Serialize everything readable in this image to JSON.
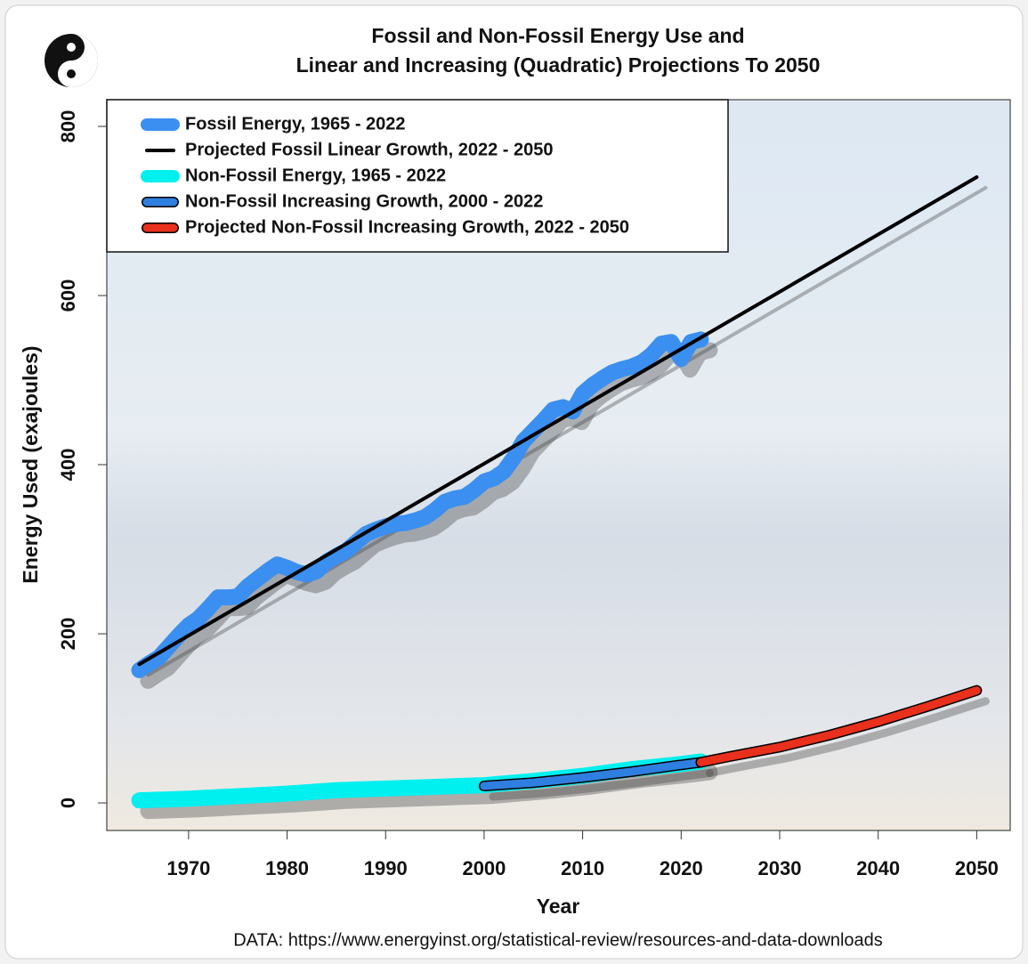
{
  "chart_data": {
    "type": "line",
    "title": "Fossil and Non-Fossil Energy Use and",
    "subtitle": "Linear and Increasing (Quadratic) Projections To 2050",
    "x_label": "Year",
    "y_label": "Energy Used (exajoules)",
    "source": "DATA: https://www.energyinst.org/statistical-review/resources-and-data-downloads",
    "xlim": [
      1961.7,
      2053.4
    ],
    "ylim": [
      -32.6,
      831.6
    ],
    "xticks": [
      1970,
      1980,
      1990,
      2000,
      2010,
      2020,
      2030,
      2040,
      2050
    ],
    "yticks": [
      0,
      200,
      400,
      600,
      800
    ],
    "legend": "top-left",
    "series": [
      {
        "name": "Fossil Energy, 1965 - 2022",
        "color": "#3b8ff0",
        "x": [
          1965,
          1966,
          1967,
          1968,
          1969,
          1970,
          1971,
          1972,
          1973,
          1974,
          1975,
          1976,
          1977,
          1978,
          1979,
          1980,
          1981,
          1982,
          1983,
          1984,
          1985,
          1986,
          1987,
          1988,
          1989,
          1990,
          1991,
          1992,
          1993,
          1994,
          1995,
          1996,
          1997,
          1998,
          1999,
          2000,
          2001,
          2002,
          2003,
          2004,
          2005,
          2006,
          2007,
          2008,
          2009,
          2010,
          2011,
          2012,
          2013,
          2014,
          2015,
          2016,
          2017,
          2018,
          2019,
          2020,
          2021,
          2022
        ],
        "values": [
          157,
          165,
          172,
          185,
          198,
          210,
          218,
          230,
          243,
          243,
          244,
          256,
          265,
          274,
          282,
          278,
          273,
          270,
          274,
          285,
          292,
          298,
          308,
          318,
          323,
          327,
          330,
          331,
          334,
          338,
          346,
          356,
          360,
          362,
          370,
          380,
          384,
          392,
          408,
          428,
          440,
          452,
          465,
          468,
          463,
          484,
          494,
          502,
          509,
          513,
          516,
          521,
          530,
          543,
          545,
          525,
          545,
          548
        ]
      },
      {
        "name": "Projected Fossil Linear Growth, 2022 - 2050",
        "color": "#000000",
        "x": [
          1965,
          2050
        ],
        "values": [
          164,
          740
        ]
      },
      {
        "name": "Non-Fossil Energy, 1965 - 2022",
        "color": "#00f0f0",
        "x": [
          1965,
          1970,
          1975,
          1980,
          1985,
          1990,
          1995,
          2000,
          2005,
          2010,
          2015,
          2020,
          2022
        ],
        "values": [
          3,
          5,
          8,
          11,
          15,
          17,
          19,
          21,
          26,
          32,
          40,
          46,
          49
        ]
      },
      {
        "name": "Non-Fossil Increasing Growth, 2000 - 2022",
        "color": "#2f7fe0",
        "outline": "#000000",
        "x": [
          2000,
          2005,
          2010,
          2015,
          2020,
          2022
        ],
        "values": [
          20,
          24,
          30,
          37,
          45,
          48
        ]
      },
      {
        "name": "Projected Non-Fossil Increasing Growth, 2022 - 2050",
        "color": "#e8301c",
        "outline": "#000000",
        "x": [
          2022,
          2025,
          2030,
          2035,
          2040,
          2045,
          2050
        ],
        "values": [
          48,
          55,
          66,
          80,
          96,
          114,
          133
        ]
      }
    ]
  }
}
